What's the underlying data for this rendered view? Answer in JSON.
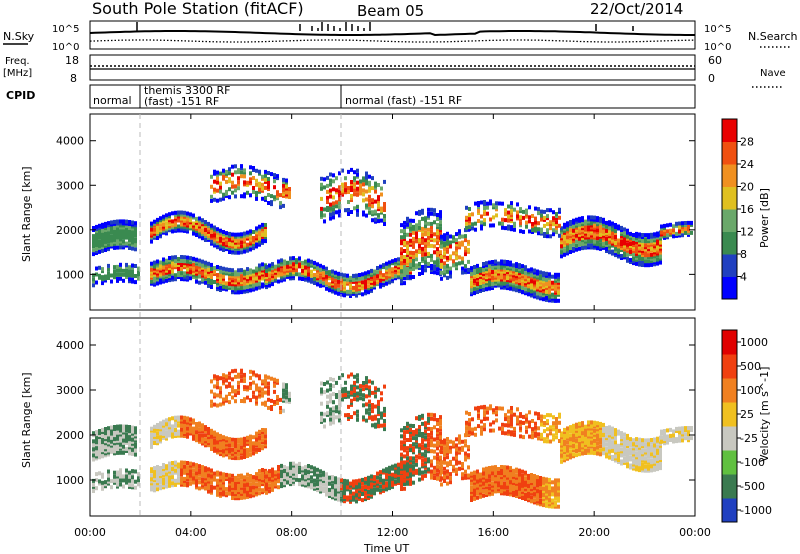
{
  "header": {
    "station": "South Pole Station (fitACF)",
    "beam": "Beam 05",
    "date": "22/Oct/2014"
  },
  "panels": {
    "nsky_label": "N.Sky",
    "nsearch_label": "N.Search",
    "y_exp_top": "10^5",
    "y_exp_bot": "10^0",
    "freq_label_1": "Freq.",
    "freq_label_2": "[MHz]",
    "freq_ticks": [
      "18",
      "8"
    ],
    "nave_label": "Nave",
    "nave_ticks": [
      "60",
      "0"
    ],
    "cpid_label": "CPID",
    "cpid_segments": [
      {
        "lines": [
          "normal"
        ]
      },
      {
        "lines": [
          "themis 3300 RF",
          "(fast) -151 RF"
        ]
      },
      {
        "lines": [
          "normal (fast) -151 RF"
        ]
      }
    ]
  },
  "chart_data": [
    {
      "type": "heatmap",
      "name": "power",
      "ylabel": "Slant Range [km]",
      "yticks": [
        "1000",
        "2000",
        "3000",
        "4000"
      ],
      "ylim": [
        200,
        4600
      ],
      "colorbar_label": "Power [dB]",
      "colorbar_ticks": [
        "28",
        "24",
        "20",
        "16",
        "12",
        "8",
        "4"
      ],
      "colors": [
        "#0000ff",
        "#2040c0",
        "#3a8a50",
        "#6aa86a",
        "#e0c020",
        "#f09020",
        "#f05010",
        "#e80000"
      ]
    },
    {
      "type": "heatmap",
      "name": "velocity",
      "ylabel": "Slant Range [km]",
      "yticks": [
        "1000",
        "2000",
        "3000",
        "4000"
      ],
      "ylim": [
        200,
        4600
      ],
      "colorbar_label": "Velocity [m s^-1]",
      "colorbar_ticks": [
        "1000",
        "500",
        "100",
        "25",
        "-25",
        "-100",
        "-500",
        "-1000"
      ],
      "colors": [
        "#2040c0",
        "#3a7a50",
        "#60c040",
        "#c8c8c0",
        "#f0c020",
        "#f08020",
        "#f04010",
        "#e00000"
      ]
    }
  ],
  "time_axis": {
    "label": "Time UT",
    "ticks": [
      "00:00",
      "04:00",
      "08:00",
      "12:00",
      "16:00",
      "20:00",
      "00:00"
    ]
  }
}
